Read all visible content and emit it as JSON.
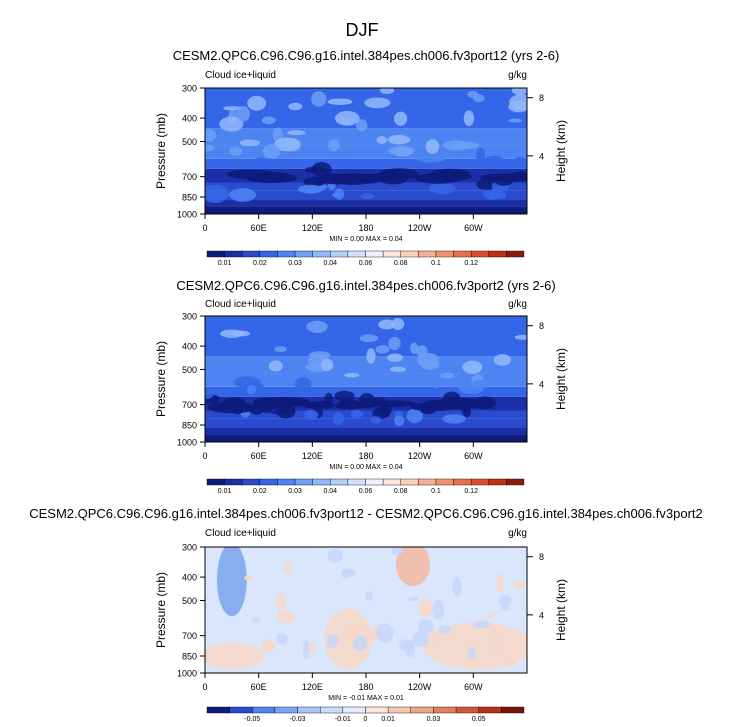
{
  "page_title": "DJF",
  "colors": {
    "cb_main": [
      "#0d1b7a",
      "#1c2fa8",
      "#2a4bd0",
      "#3566e8",
      "#4d84f2",
      "#6f9ff7",
      "#93b8fa",
      "#b5cffc",
      "#d3e1fd",
      "#eef1fb",
      "#fde7dc",
      "#fbcfb7",
      "#f7b193",
      "#f2916e",
      "#ea6f49",
      "#de4d2a",
      "#c0301a",
      "#8f1a0e"
    ],
    "cb_diff": [
      "#0d1b7a",
      "#2a4bd0",
      "#4d84f2",
      "#7aa7f7",
      "#a6c5fb",
      "#cbdcfd",
      "#e3ecfe",
      "#fbe5d9",
      "#f6c9b2",
      "#efa689",
      "#e67f5d",
      "#d85535",
      "#b8301a",
      "#7a140a"
    ],
    "diff_base": "#d9e6fc",
    "diff_warm": "#f7d7c6",
    "diff_warm2": "#f2b89f",
    "diff_cool": "#7aa2ee"
  },
  "chart_data": [
    {
      "type": "heatmap",
      "title": "CESM2.QPC6.C96.C96.g16.intel.384pes.ch006.fv3port12 (yrs 2-6)",
      "left_label": "Cloud ice+liquid",
      "right_label": "g/kg",
      "ylabel": "Pressure (mb)",
      "ylabel_right": "Height (km)",
      "y_ticks": [
        "300",
        "400",
        "500",
        "700",
        "850",
        "1000"
      ],
      "y_tick_values": [
        300,
        400,
        500,
        700,
        850,
        1000
      ],
      "ylim": [
        1000,
        300
      ],
      "y_right_ticks": [
        "8",
        "4"
      ],
      "y_right_values": [
        8,
        4
      ],
      "x_ticks": [
        "0",
        "60E",
        "120E",
        "180",
        "120W",
        "60W"
      ],
      "x_tick_values": [
        0,
        60,
        120,
        180,
        240,
        300
      ],
      "xlim": [
        0,
        360
      ],
      "stats": "MIN =   0.00  MAX =   0.04",
      "colorbar_labels": [
        "0.01",
        "0.02",
        "0.03",
        "0.04",
        "0.06",
        "0.08",
        "0.1",
        "0.12"
      ],
      "colorbar_label_slots": [
        1,
        3,
        5,
        7,
        9,
        11,
        13,
        15
      ],
      "field": {
        "levels_mb": [
          1000,
          925,
          850,
          800,
          750,
          700,
          650,
          600,
          550,
          500,
          450,
          400,
          350,
          300
        ],
        "lon_samples": [
          0,
          30,
          60,
          90,
          120,
          150,
          180,
          210,
          240,
          270,
          300,
          330,
          360
        ],
        "description_classes": [
          0,
          1,
          1,
          2,
          2,
          1,
          2,
          3,
          3,
          3,
          3,
          3,
          4,
          3
        ]
      }
    },
    {
      "type": "heatmap",
      "title": "CESM2.QPC6.C96.C96.g16.intel.384pes.ch006.fv3port2 (yrs 2-6)",
      "left_label": "Cloud ice+liquid",
      "right_label": "g/kg",
      "ylabel": "Pressure (mb)",
      "ylabel_right": "Height (km)",
      "y_ticks": [
        "300",
        "400",
        "500",
        "700",
        "850",
        "1000"
      ],
      "y_tick_values": [
        300,
        400,
        500,
        700,
        850,
        1000
      ],
      "ylim": [
        1000,
        300
      ],
      "y_right_ticks": [
        "8",
        "4"
      ],
      "y_right_values": [
        8,
        4
      ],
      "x_ticks": [
        "0",
        "60E",
        "120E",
        "180",
        "120W",
        "60W"
      ],
      "x_tick_values": [
        0,
        60,
        120,
        180,
        240,
        300
      ],
      "xlim": [
        0,
        360
      ],
      "stats": "MIN =   0.00  MAX =   0.04",
      "colorbar_labels": [
        "0.01",
        "0.02",
        "0.03",
        "0.04",
        "0.06",
        "0.08",
        "0.1",
        "0.12"
      ],
      "colorbar_label_slots": [
        1,
        3,
        5,
        7,
        9,
        11,
        13,
        15
      ],
      "field": {
        "levels_mb": [
          1000,
          925,
          850,
          800,
          750,
          700,
          650,
          600,
          550,
          500,
          450,
          400,
          350,
          300
        ],
        "lon_samples": [
          0,
          30,
          60,
          90,
          120,
          150,
          180,
          210,
          240,
          270,
          300,
          330,
          360
        ],
        "description_classes": [
          0,
          1,
          1,
          2,
          1,
          1,
          2,
          3,
          3,
          3,
          3,
          3,
          4,
          3
        ]
      }
    },
    {
      "type": "heatmap",
      "title": "CESM2.QPC6.C96.C96.g16.intel.384pes.ch006.fv3port12 - CESM2.QPC6.C96.C96.g16.intel.384pes.ch006.fv3port2",
      "left_label": "Cloud ice+liquid",
      "right_label": "g/kg",
      "ylabel": "Pressure (mb)",
      "ylabel_right": "Height (km)",
      "y_ticks": [
        "300",
        "400",
        "500",
        "700",
        "850",
        "1000"
      ],
      "y_tick_values": [
        300,
        400,
        500,
        700,
        850,
        1000
      ],
      "ylim": [
        1000,
        300
      ],
      "y_right_ticks": [
        "8",
        "4"
      ],
      "y_right_values": [
        8,
        4
      ],
      "x_ticks": [
        "0",
        "60E",
        "120E",
        "180",
        "120W",
        "60W"
      ],
      "x_tick_values": [
        0,
        60,
        120,
        180,
        240,
        300
      ],
      "xlim": [
        0,
        360
      ],
      "stats": "MIN =  -0.01  MAX =   0.01",
      "colorbar_labels": [
        "-0.05",
        "-0.03",
        "-0.01",
        "0",
        "0.01",
        "0.03",
        "0.05"
      ],
      "colorbar_label_slots": [
        2,
        4,
        6,
        7,
        8,
        10,
        12
      ],
      "features": [
        {
          "kind": "negative",
          "lon": [
            20,
            40
          ],
          "p": [
            300,
            560
          ]
        },
        {
          "kind": "positive",
          "lon": [
            140,
            180
          ],
          "p": [
            560,
            930
          ]
        },
        {
          "kind": "positive",
          "lon": [
            250,
            360
          ],
          "p": [
            640,
            930
          ]
        },
        {
          "kind": "positive",
          "lon": [
            220,
            245
          ],
          "p": [
            300,
            420
          ]
        },
        {
          "kind": "positive",
          "lon": [
            0,
            60
          ],
          "p": [
            780,
            930
          ]
        }
      ]
    }
  ]
}
